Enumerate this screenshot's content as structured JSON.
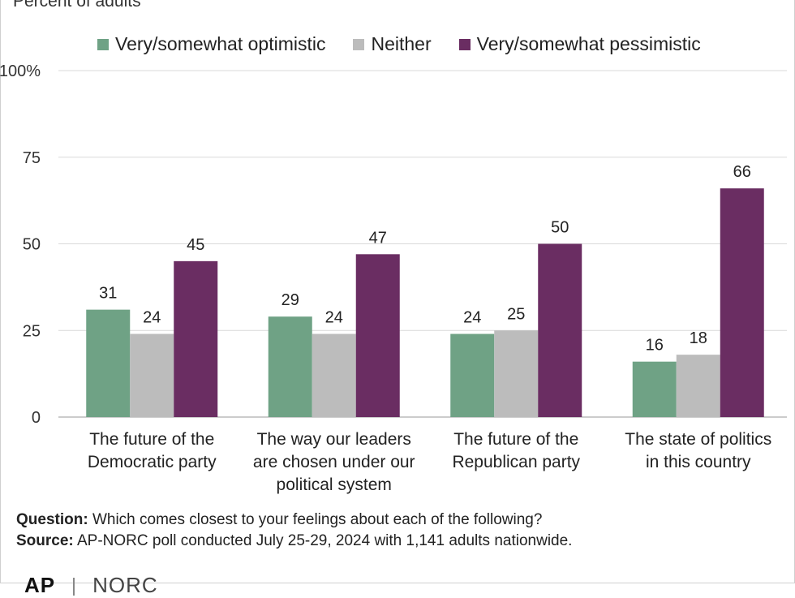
{
  "subtitle": "Percent of adults",
  "chart_data": {
    "type": "bar",
    "categories": [
      [
        "The future of the",
        "Democratic party"
      ],
      [
        "The way our leaders",
        "are chosen under our",
        "political system"
      ],
      [
        "The future of the",
        "Republican party"
      ],
      [
        "The state of politics",
        "in this country"
      ]
    ],
    "series": [
      {
        "name": "Very/somewhat optimistic",
        "color": "#6fa285",
        "values": [
          31,
          29,
          24,
          16
        ]
      },
      {
        "name": "Neither",
        "color": "#bcbcbc",
        "values": [
          24,
          24,
          25,
          18
        ]
      },
      {
        "name": "Very/somewhat pessimistic",
        "color": "#6a2d62",
        "values": [
          45,
          47,
          50,
          66
        ]
      }
    ],
    "yticks": [
      "0",
      "25",
      "50",
      "75",
      "100%"
    ],
    "ylim": [
      0,
      100
    ],
    "grid": true,
    "legend_position": "top"
  },
  "footer": {
    "question_label": "Question:",
    "question_text": " Which comes closest to your feelings about each of the following?",
    "source_label": "Source:",
    "source_text": " AP-NORC poll conducted July 25-29, 2024 with 1,141 adults nationwide."
  },
  "logos": {
    "left": "AP",
    "right": "NORC"
  }
}
